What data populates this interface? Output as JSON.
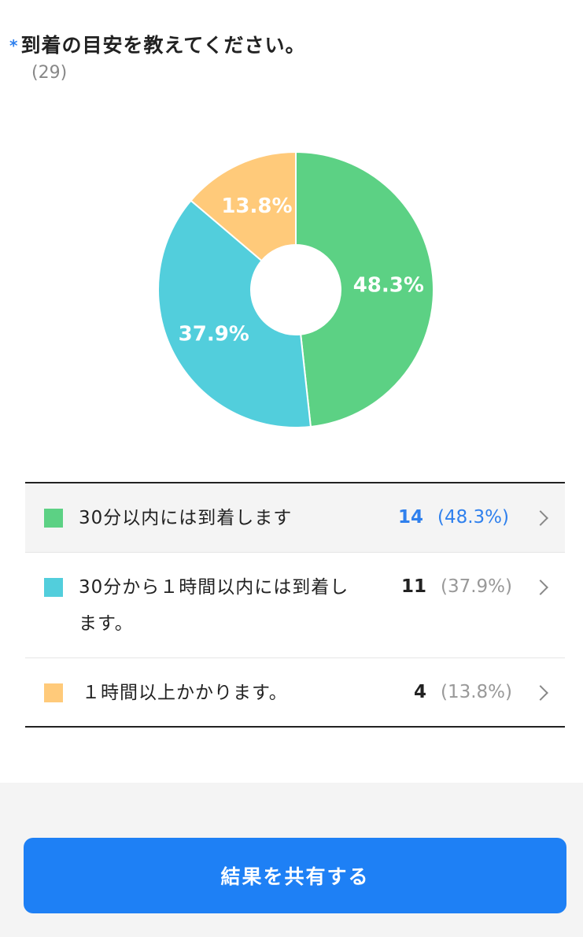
{
  "question": {
    "required_mark": "*",
    "title": "到着の目安を教えてください。",
    "response_count": "(29)"
  },
  "chart_data": {
    "type": "pie",
    "donut": true,
    "total": 29,
    "slices": [
      {
        "label": "30分以内には到着します",
        "count": 14,
        "percent": 48.3,
        "percent_label": "48.3%",
        "color": "#5cd184"
      },
      {
        "label": "30分から１時間以内には到着します。",
        "count": 11,
        "percent": 37.9,
        "percent_label": "37.9%",
        "color": "#52cedc"
      },
      {
        "label": "１時間以上かかります。",
        "count": 4,
        "percent": 13.8,
        "percent_label": "13.8%",
        "color": "#ffca7a"
      }
    ]
  },
  "legend": {
    "rows": [
      {
        "line1": "30分以内には到着します",
        "line2": "",
        "count": "14",
        "percent": "(48.3%)",
        "highlight": true
      },
      {
        "line1": "30分から１時間以内には到着し",
        "line2": "ます。",
        "count": "11",
        "percent": "(37.9%)",
        "highlight": false
      },
      {
        "line1": "１時間以上かかります。",
        "line2": "",
        "count": "4",
        "percent": "(13.8%)",
        "highlight": false
      }
    ]
  },
  "footer": {
    "share_label": "結果を共有する",
    "button_color": "#1e80f5"
  }
}
